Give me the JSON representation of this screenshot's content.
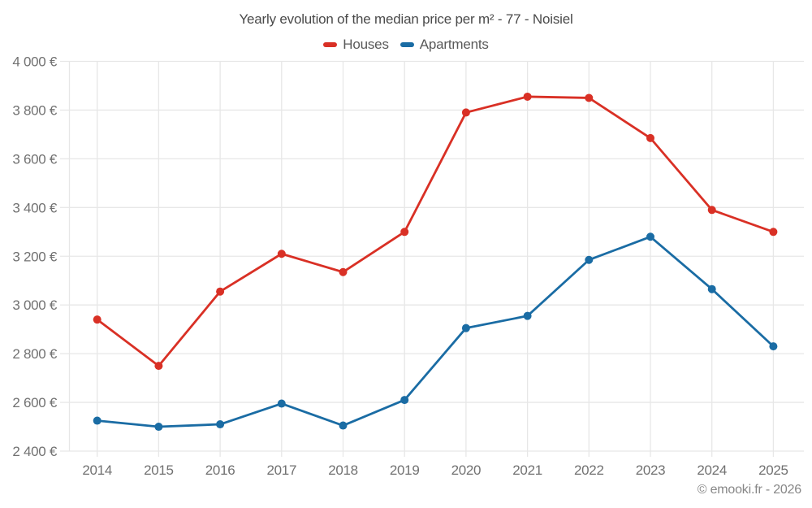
{
  "page": {
    "title": "Yearly evolution of the median price per m² - 77 - Noisiel",
    "footer": "© emooki.fr - 2026"
  },
  "chart_data": {
    "type": "line",
    "title": "Yearly evolution of the median price per m² - 77 - Noisiel",
    "xlabel": "",
    "ylabel": "",
    "x": [
      2014,
      2015,
      2016,
      2017,
      2018,
      2019,
      2020,
      2021,
      2022,
      2023,
      2024,
      2025
    ],
    "series": [
      {
        "name": "Houses",
        "color": "#d93025",
        "marker": "circle",
        "values": [
          2940,
          2750,
          3055,
          3210,
          3135,
          3300,
          3790,
          3855,
          3850,
          3685,
          3390,
          3300
        ]
      },
      {
        "name": "Apartments",
        "color": "#1a6ca4",
        "marker": "circle",
        "values": [
          2525,
          2500,
          2510,
          2595,
          2505,
          2610,
          2905,
          2955,
          3185,
          3280,
          3065,
          2830
        ]
      }
    ],
    "ylim": [
      2400,
      4000
    ],
    "yticks": [
      2400,
      2600,
      2800,
      3000,
      3200,
      3400,
      3600,
      3800,
      4000
    ],
    "y_unit": "€",
    "grid": true,
    "legend_position": "top",
    "gridline_color": "#e7e7e7",
    "tick_label_color": "#717171"
  }
}
